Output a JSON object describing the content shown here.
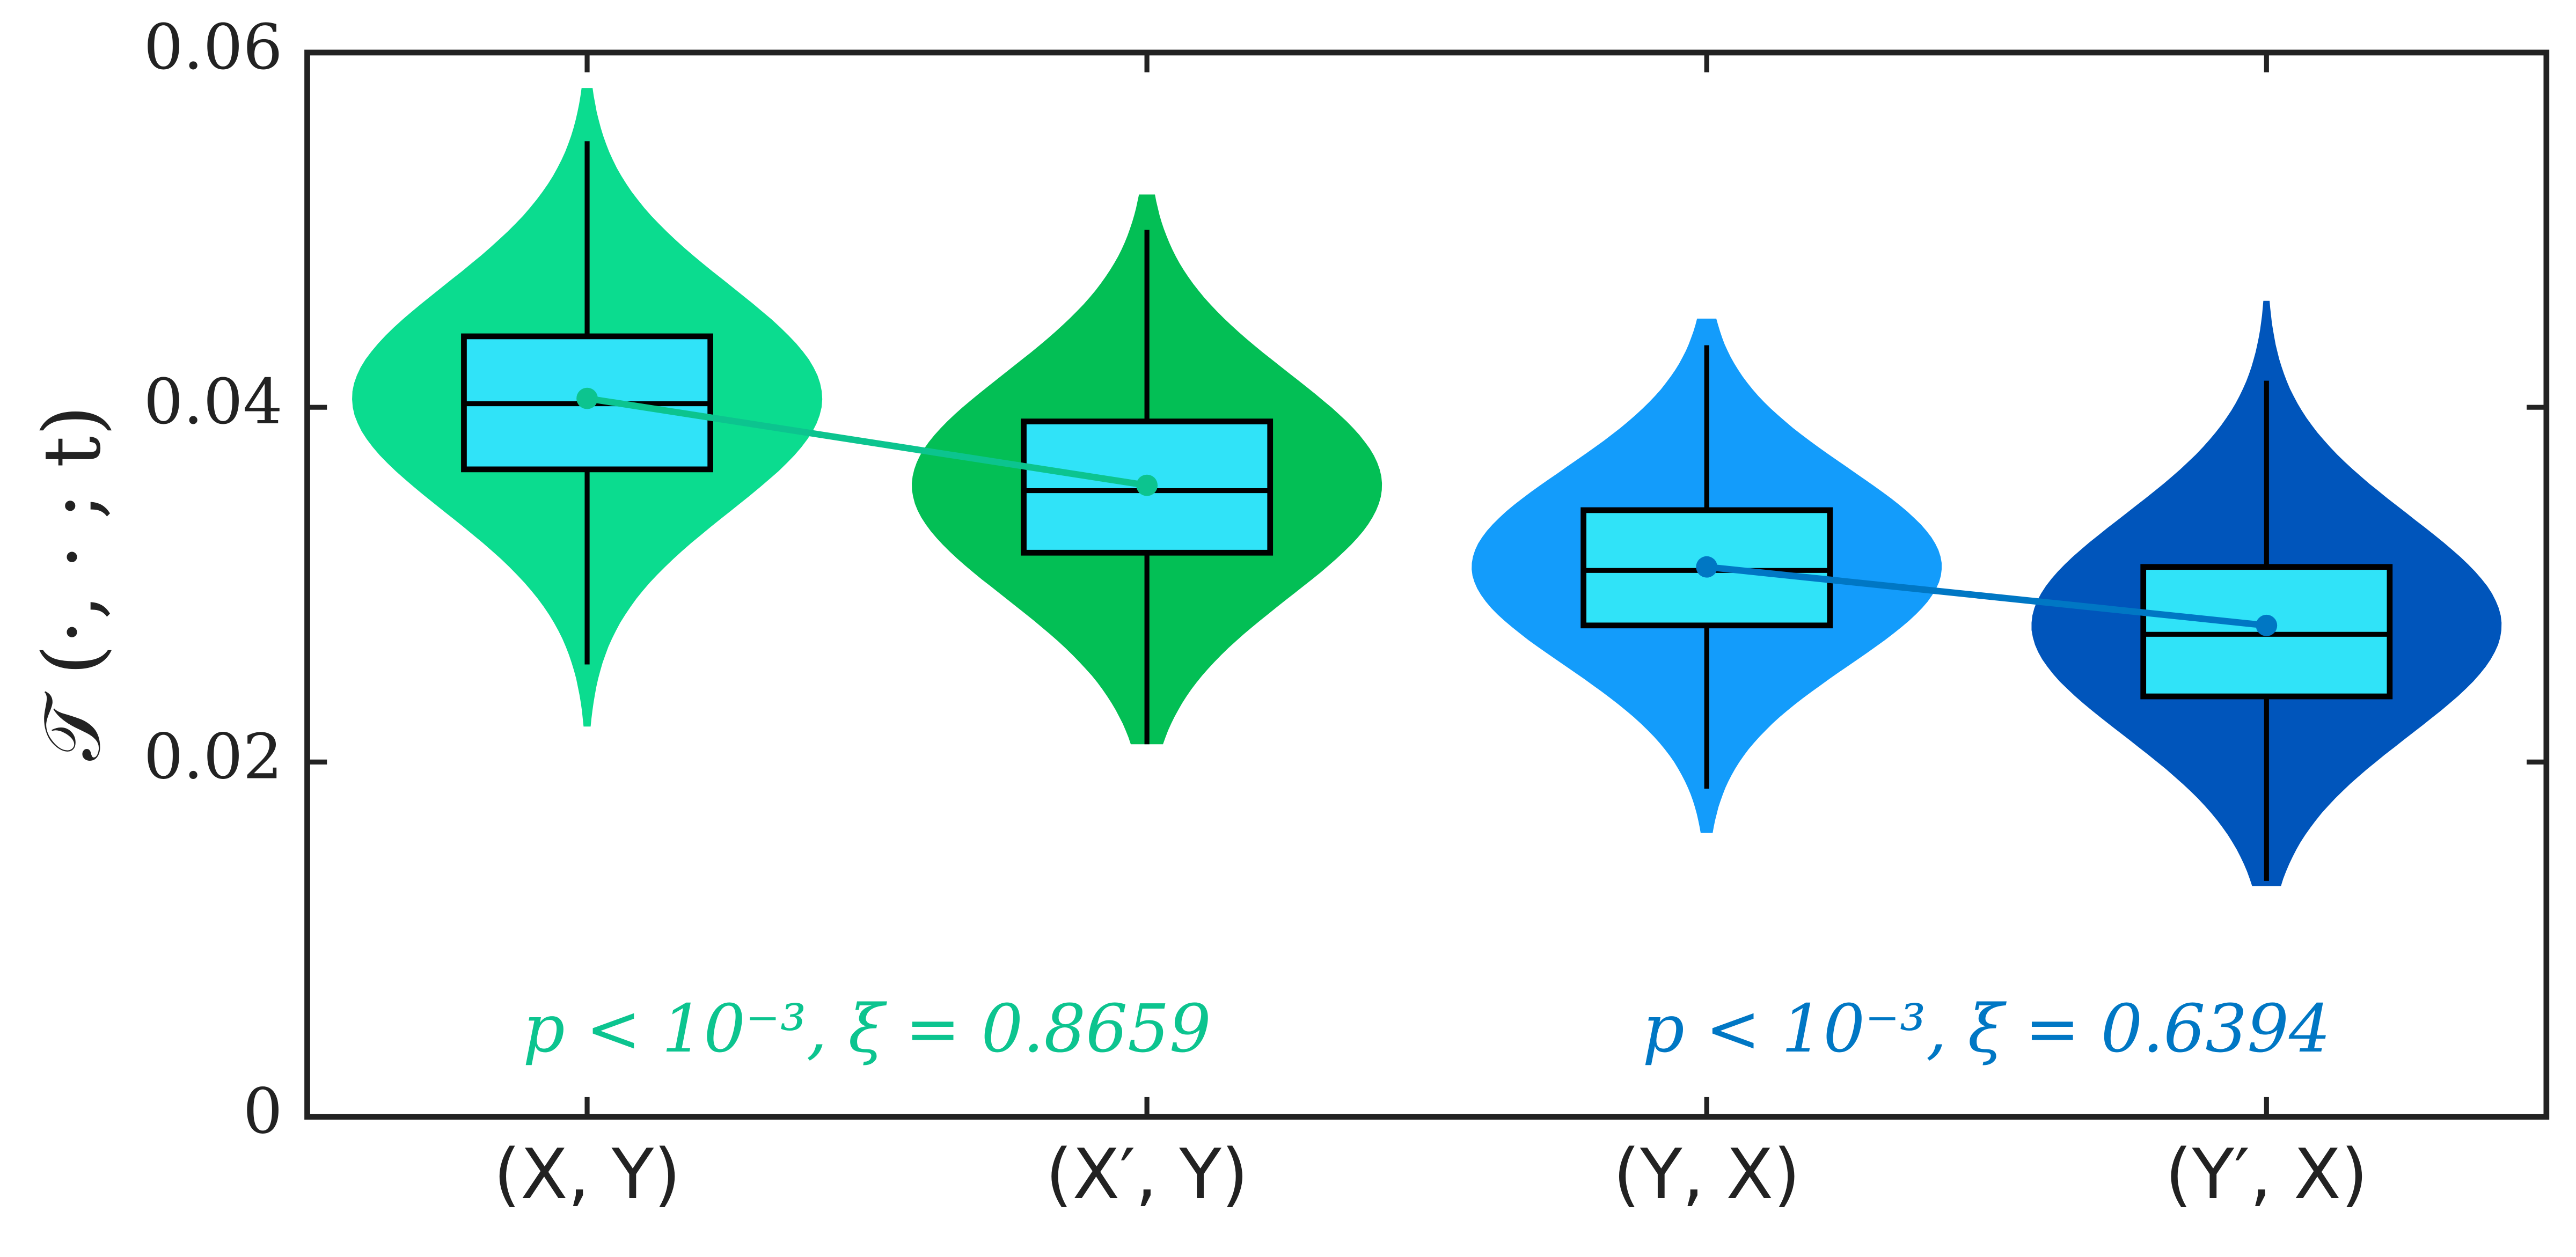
{
  "chart_data": {
    "type": "violin",
    "y_label": "𝒯 (·, · ; t)",
    "categories": [
      "(X, Y)",
      "(X′, Y)",
      "(Y, X)",
      "(Y′, X)"
    ],
    "box_color": "#30e3f8",
    "boxes": [
      {
        "color": "#0bdc8f",
        "violin_min": 0.022,
        "violin_max": 0.058,
        "whisker_low": 0.0255,
        "q1": 0.0365,
        "median": 0.0402,
        "q3": 0.044,
        "whisker_high": 0.055,
        "mean": 0.0405
      },
      {
        "color": "#03bf55",
        "violin_min": 0.021,
        "violin_max": 0.052,
        "whisker_low": 0.021,
        "q1": 0.0318,
        "median": 0.0353,
        "q3": 0.0392,
        "whisker_high": 0.05,
        "mean": 0.0356
      },
      {
        "color": "#139cfb",
        "violin_min": 0.016,
        "violin_max": 0.045,
        "whisker_low": 0.0185,
        "q1": 0.0277,
        "median": 0.0308,
        "q3": 0.0342,
        "whisker_high": 0.0435,
        "mean": 0.031
      },
      {
        "color": "#0055bb",
        "violin_min": 0.013,
        "violin_max": 0.046,
        "whisker_low": 0.0133,
        "q1": 0.0237,
        "median": 0.0272,
        "q3": 0.031,
        "whisker_high": 0.0415,
        "mean": 0.0277
      }
    ],
    "pairs": [
      {
        "color": "#0cc48f",
        "annotation": "p < 10⁻³,  ξ = 0.8659"
      },
      {
        "color": "#0077c4",
        "annotation": "p < 10⁻³,  ξ = 0.6394"
      }
    ],
    "ylim": [
      0,
      0.06
    ],
    "yticks": [
      0,
      0.02,
      0.04,
      0.06
    ]
  }
}
